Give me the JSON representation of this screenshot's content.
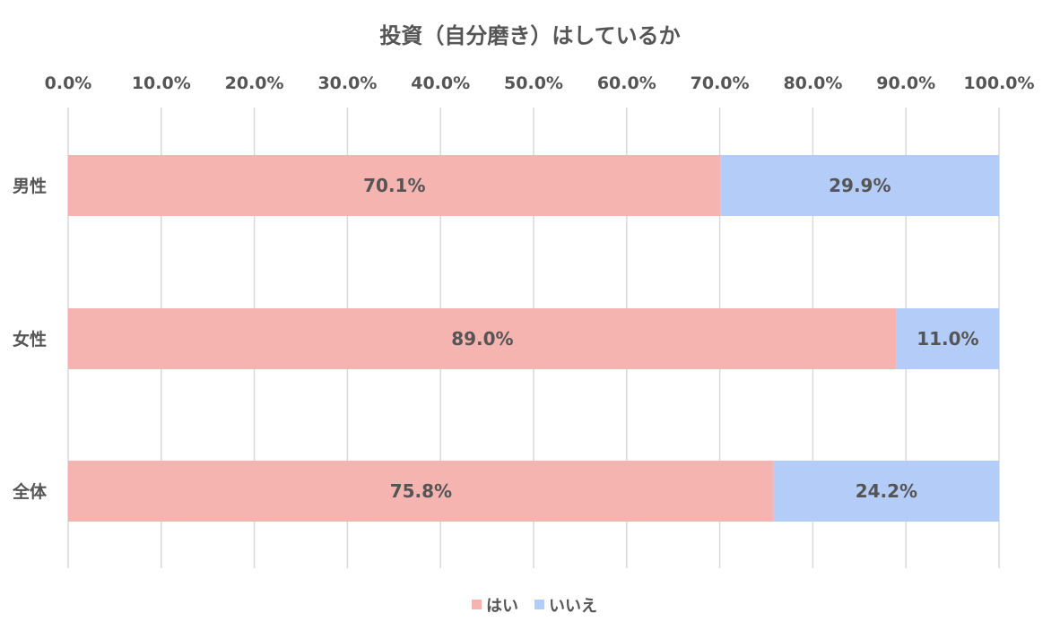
{
  "chart_data": {
    "type": "bar",
    "orientation": "horizontal",
    "stacked": true,
    "title": "投資（自分磨き）はしているか",
    "categories": [
      "男性",
      "女性",
      "全体"
    ],
    "series": [
      {
        "name": "はい",
        "values": [
          70.1,
          89.0,
          75.8
        ],
        "labels": [
          "70.1%",
          "89.0%",
          "75.8%"
        ],
        "color": "#f5b4b0"
      },
      {
        "name": "いいえ",
        "values": [
          29.9,
          11.0,
          24.2
        ],
        "labels": [
          "29.9%",
          "11.0%",
          "24.2%"
        ],
        "color": "#b4cdf8"
      }
    ],
    "xlim": [
      0,
      100
    ],
    "xticks": [
      "0.0%",
      "10.0%",
      "20.0%",
      "30.0%",
      "40.0%",
      "50.0%",
      "60.0%",
      "70.0%",
      "80.0%",
      "90.0%",
      "100.0%"
    ],
    "x_axis_position": "top",
    "grid": true,
    "legend": "bottom",
    "gridline_color": "#d9d9d9",
    "text_color": "#555555"
  }
}
